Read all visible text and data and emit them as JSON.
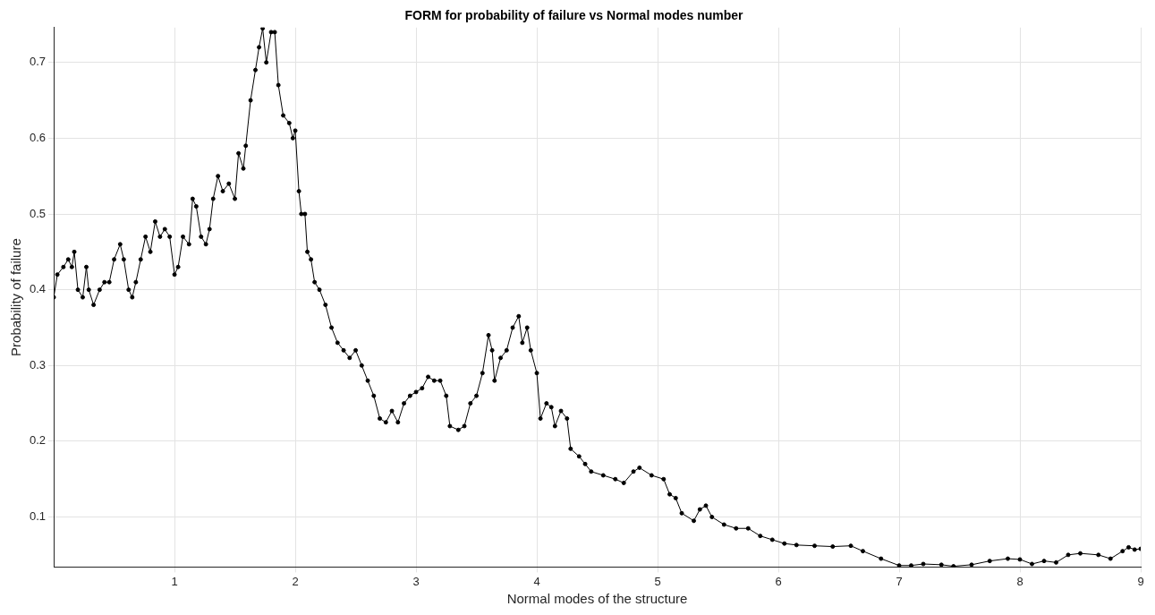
{
  "chart_data": {
    "type": "line",
    "title": "FORM for probability of failure vs Normal modes number",
    "xlabel": "Normal modes of the structure",
    "ylabel": "Probability of failure",
    "xlim": [
      0,
      9
    ],
    "xticks": [
      1,
      2,
      3,
      4,
      5,
      6,
      7,
      8,
      9
    ],
    "ylim": [
      0.034,
      0.746
    ],
    "yticks": [
      0.1,
      0.2,
      0.3,
      0.4,
      0.5,
      0.6,
      0.7
    ],
    "grid": true,
    "marker": "circle",
    "line_style": "solid",
    "legend": false,
    "series": [
      {
        "color": "#000000",
        "x": [
          0,
          0.03,
          0.08,
          0.12,
          0.15,
          0.17,
          0.2,
          0.24,
          0.27,
          0.29,
          0.33,
          0.38,
          0.42,
          0.46,
          0.5,
          0.55,
          0.58,
          0.62,
          0.65,
          0.68,
          0.72,
          0.76,
          0.8,
          0.84,
          0.88,
          0.92,
          0.96,
          1,
          1.03,
          1.07,
          1.12,
          1.15,
          1.18,
          1.22,
          1.26,
          1.29,
          1.32,
          1.36,
          1.4,
          1.45,
          1.5,
          1.53,
          1.57,
          1.59,
          1.63,
          1.67,
          1.7,
          1.73,
          1.76,
          1.8,
          1.83,
          1.86,
          1.9,
          1.95,
          1.98,
          2,
          2.03,
          2.05,
          2.08,
          2.1,
          2.13,
          2.16,
          2.2,
          2.25,
          2.3,
          2.35,
          2.4,
          2.45,
          2.5,
          2.55,
          2.6,
          2.65,
          2.7,
          2.75,
          2.8,
          2.85,
          2.9,
          2.95,
          3,
          3.05,
          3.1,
          3.15,
          3.2,
          3.25,
          3.28,
          3.35,
          3.4,
          3.45,
          3.5,
          3.55,
          3.6,
          3.63,
          3.65,
          3.7,
          3.75,
          3.8,
          3.85,
          3.88,
          3.92,
          3.95,
          4,
          4.03,
          4.08,
          4.12,
          4.15,
          4.2,
          4.25,
          4.28,
          4.35,
          4.4,
          4.45,
          4.55,
          4.65,
          4.72,
          4.8,
          4.85,
          4.95,
          5.05,
          5.1,
          5.15,
          5.2,
          5.3,
          5.35,
          5.4,
          5.45,
          5.55,
          5.65,
          5.75,
          5.85,
          5.95,
          6.05,
          6.15,
          6.3,
          6.45,
          6.6,
          6.7,
          6.85,
          7,
          7.1,
          7.2,
          7.35,
          7.45,
          7.6,
          7.75,
          7.9,
          8,
          8.1,
          8.2,
          8.3,
          8.4,
          8.5,
          8.65,
          8.75,
          8.85,
          8.9,
          8.95,
          9
        ],
        "values": [
          0.39,
          0.42,
          0.43,
          0.44,
          0.43,
          0.45,
          0.4,
          0.39,
          0.43,
          0.4,
          0.38,
          0.4,
          0.41,
          0.41,
          0.44,
          0.46,
          0.44,
          0.4,
          0.39,
          0.41,
          0.44,
          0.47,
          0.45,
          0.49,
          0.47,
          0.48,
          0.47,
          0.42,
          0.43,
          0.47,
          0.46,
          0.52,
          0.51,
          0.47,
          0.46,
          0.48,
          0.52,
          0.55,
          0.53,
          0.54,
          0.52,
          0.58,
          0.56,
          0.59,
          0.65,
          0.69,
          0.72,
          0.745,
          0.7,
          0.74,
          0.74,
          0.67,
          0.63,
          0.62,
          0.6,
          0.61,
          0.53,
          0.5,
          0.5,
          0.45,
          0.44,
          0.41,
          0.4,
          0.38,
          0.35,
          0.33,
          0.32,
          0.31,
          0.32,
          0.3,
          0.28,
          0.26,
          0.23,
          0.225,
          0.24,
          0.225,
          0.25,
          0.26,
          0.265,
          0.27,
          0.285,
          0.28,
          0.28,
          0.26,
          0.22,
          0.215,
          0.22,
          0.25,
          0.26,
          0.29,
          0.34,
          0.32,
          0.28,
          0.31,
          0.32,
          0.35,
          0.365,
          0.33,
          0.35,
          0.32,
          0.29,
          0.23,
          0.25,
          0.245,
          0.22,
          0.24,
          0.23,
          0.19,
          0.18,
          0.17,
          0.16,
          0.155,
          0.15,
          0.145,
          0.16,
          0.165,
          0.155,
          0.15,
          0.13,
          0.125,
          0.105,
          0.095,
          0.11,
          0.115,
          0.1,
          0.09,
          0.085,
          0.085,
          0.075,
          0.07,
          0.065,
          0.063,
          0.062,
          0.061,
          0.062,
          0.055,
          0.045,
          0.036,
          0.036,
          0.038,
          0.037,
          0.035,
          0.037,
          0.042,
          0.045,
          0.044,
          0.038,
          0.042,
          0.04,
          0.05,
          0.052,
          0.05,
          0.045,
          0.055,
          0.06,
          0.057,
          0.058
        ]
      }
    ]
  }
}
